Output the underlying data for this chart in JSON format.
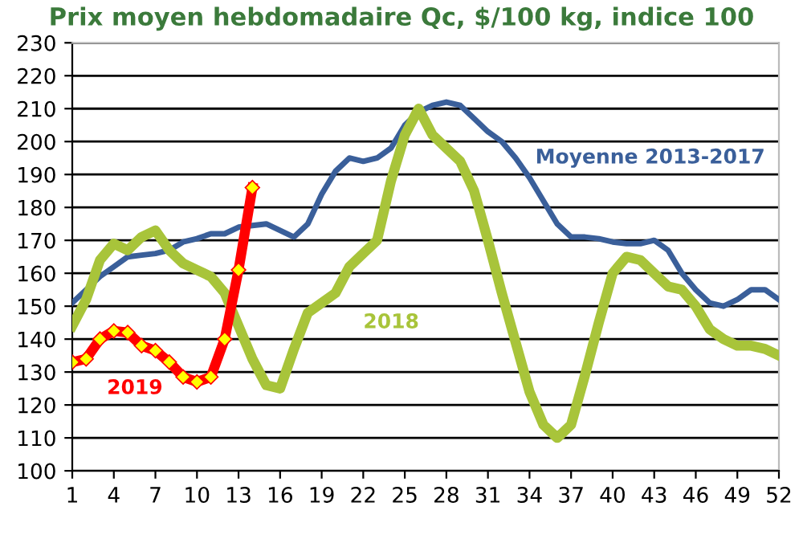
{
  "chart_data": {
    "type": "line",
    "title": "Prix moyen hebdomadaire Qc, $/100 kg, indice 100",
    "x": [
      1,
      2,
      3,
      4,
      5,
      6,
      7,
      8,
      9,
      10,
      11,
      12,
      13,
      14,
      15,
      16,
      17,
      18,
      19,
      20,
      21,
      22,
      23,
      24,
      25,
      26,
      27,
      28,
      29,
      30,
      31,
      32,
      33,
      34,
      35,
      36,
      37,
      38,
      39,
      40,
      41,
      42,
      43,
      44,
      45,
      46,
      47,
      48,
      49,
      50,
      51,
      52
    ],
    "xlim": [
      1,
      52
    ],
    "xticks": [
      1,
      4,
      7,
      10,
      13,
      16,
      19,
      22,
      25,
      28,
      31,
      34,
      37,
      40,
      43,
      46,
      49,
      52
    ],
    "ylim": [
      100,
      230
    ],
    "yticks": [
      100,
      110,
      120,
      130,
      140,
      150,
      160,
      170,
      180,
      190,
      200,
      210,
      220,
      230
    ],
    "grid": "y",
    "legend": false,
    "series": [
      {
        "name": "Moyenne 2013-2017",
        "color": "#3a5f9a",
        "values": [
          151,
          155,
          159,
          162,
          165,
          165.5,
          166,
          167,
          169.5,
          170.5,
          172,
          172,
          174,
          174.5,
          175,
          173,
          171,
          175,
          184,
          191,
          195,
          194,
          195,
          198,
          205,
          209,
          211,
          212,
          211,
          207,
          203,
          200,
          195,
          189,
          182,
          175,
          171,
          171,
          170.5,
          169.5,
          169,
          169,
          170,
          167,
          160,
          155,
          151,
          150,
          152,
          155,
          155,
          152
        ]
      },
      {
        "name": "2018",
        "color": "#a8c43a",
        "values": [
          144,
          152,
          164,
          169,
          167,
          171,
          173,
          167,
          163,
          161,
          159,
          154,
          144,
          134,
          126,
          125,
          137,
          148,
          151,
          154,
          162,
          166,
          170,
          188,
          202,
          210,
          202,
          198,
          194,
          185,
          170,
          154,
          139,
          124,
          114,
          110,
          114,
          129,
          145,
          160,
          165,
          164,
          160,
          156,
          155,
          150,
          143,
          140,
          138,
          138,
          137,
          135
        ]
      },
      {
        "name": "2019",
        "color": "#ff0000",
        "marker": "diamond",
        "values": [
          133,
          134,
          140,
          142.5,
          142,
          138,
          136.5,
          133,
          128.5,
          127,
          128.5,
          140,
          161,
          186,
          null,
          null,
          null,
          null,
          null,
          null,
          null,
          null,
          null,
          null,
          null,
          null,
          null,
          null,
          null,
          null,
          null,
          null,
          null,
          null,
          null,
          null,
          null,
          null,
          null,
          null,
          null,
          null,
          null,
          null,
          null,
          null,
          null,
          null,
          null,
          null,
          null,
          null
        ]
      }
    ]
  }
}
